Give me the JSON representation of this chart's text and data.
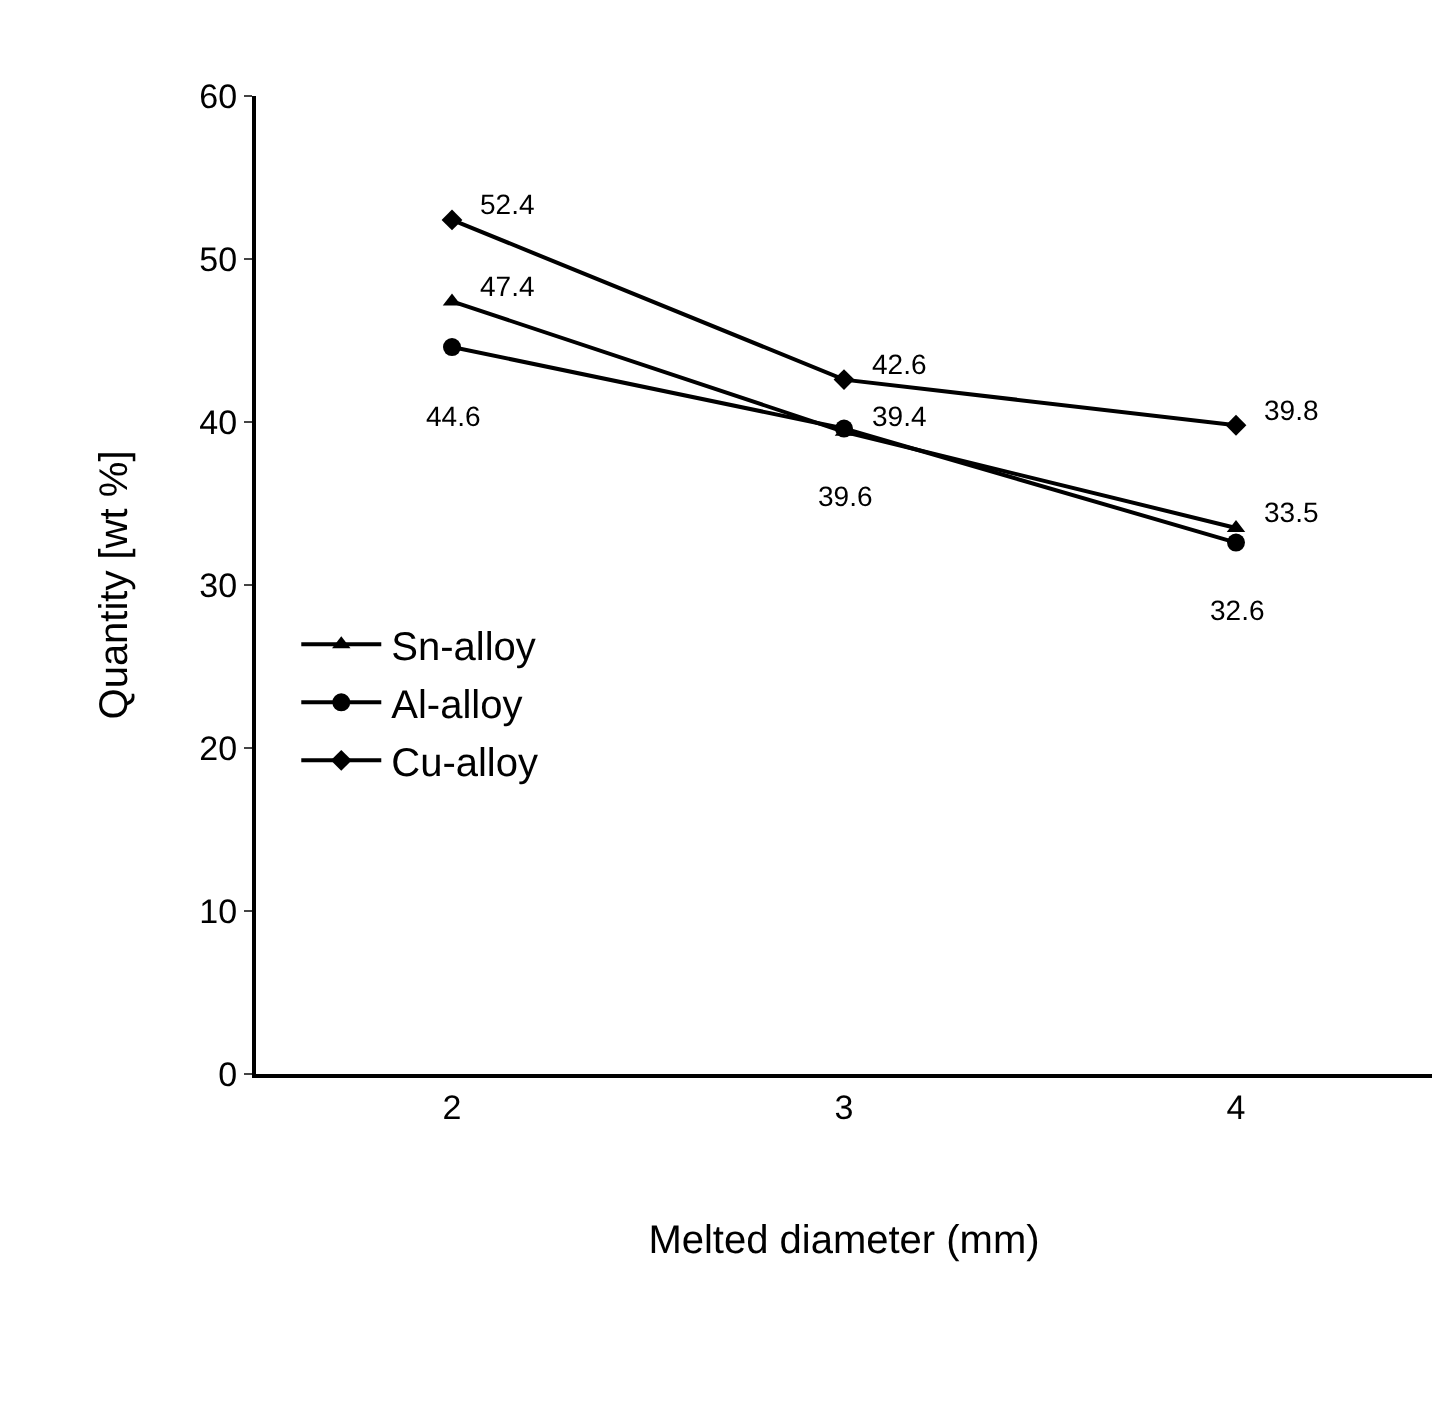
{
  "chart_data": {
    "type": "line",
    "xlabel": "Melted diameter (mm)",
    "ylabel": "Quantity [wt %]",
    "categories": [
      "2",
      "3",
      "4"
    ],
    "series": [
      {
        "name": "Sn-alloy",
        "color": "#000000",
        "marker": "triangle",
        "values": [
          47.4,
          39.4,
          33.5
        ]
      },
      {
        "name": "Al-alloy",
        "color": "#000000",
        "marker": "circle",
        "values": [
          44.6,
          39.6,
          32.6
        ]
      },
      {
        "name": "Cu-alloy",
        "color": "#000000",
        "marker": "diamond",
        "values": [
          52.4,
          42.6,
          39.8
        ]
      }
    ],
    "ylim": [
      0,
      60
    ],
    "yticks": [
      0,
      10,
      20,
      30,
      40,
      50,
      60
    ],
    "grid": false,
    "legend": "left",
    "data_labels": true
  }
}
